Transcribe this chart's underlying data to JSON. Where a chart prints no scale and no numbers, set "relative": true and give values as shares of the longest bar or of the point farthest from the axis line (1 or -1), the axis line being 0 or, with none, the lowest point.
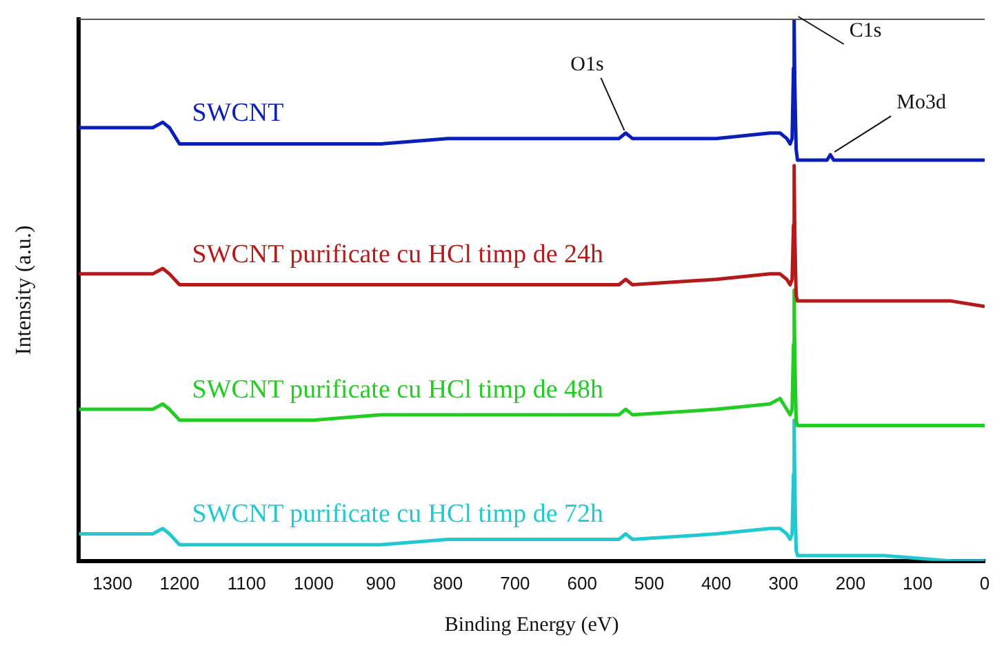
{
  "chart_data": {
    "type": "line",
    "relative": true,
    "xlabel": "Binding Energy (eV)",
    "ylabel": "Intensity (a.u.)",
    "xlim": [
      1350,
      0
    ],
    "xticks": [
      1300,
      1200,
      1100,
      1000,
      900,
      800,
      700,
      600,
      500,
      400,
      300,
      200,
      100,
      0
    ],
    "tick_labels": "x",
    "grid": false,
    "legend": false,
    "marker": "none",
    "line_style": "solid",
    "x": [
      1350,
      1300,
      1240,
      1225,
      1215,
      1200,
      1190,
      1100,
      1000,
      900,
      800,
      700,
      600,
      545,
      535,
      525,
      400,
      320,
      305,
      295,
      290,
      287,
      285,
      284,
      283,
      281,
      279,
      250,
      235,
      230,
      225,
      150,
      50,
      0
    ],
    "series": [
      {
        "name": "SWCNT",
        "color": "#0a1fb5",
        "values": [
          0.8,
          0.8,
          0.8,
          0.81,
          0.8,
          0.77,
          0.77,
          0.77,
          0.77,
          0.77,
          0.78,
          0.78,
          0.78,
          0.78,
          0.79,
          0.78,
          0.78,
          0.79,
          0.79,
          0.78,
          0.77,
          0.78,
          0.91,
          1,
          0.88,
          0.76,
          0.74,
          0.74,
          0.74,
          0.75,
          0.74,
          0.74,
          0.74,
          0.74
        ]
      },
      {
        "name": "SWCNT purificate cu HCl timp de 24h",
        "color": "#b51a1a",
        "values": [
          0.53,
          0.53,
          0.53,
          0.54,
          0.53,
          0.51,
          0.51,
          0.51,
          0.51,
          0.51,
          0.51,
          0.51,
          0.51,
          0.51,
          0.52,
          0.51,
          0.52,
          0.53,
          0.53,
          0.52,
          0.51,
          0.52,
          0.62,
          0.73,
          0.6,
          0.49,
          0.48,
          0.48,
          0.48,
          0.48,
          0.48,
          0.48,
          0.48,
          0.47
        ]
      },
      {
        "name": "SWCNT purificate cu HCl timp de 48h",
        "color": "#22cc22",
        "values": [
          0.28,
          0.28,
          0.28,
          0.29,
          0.28,
          0.26,
          0.26,
          0.26,
          0.26,
          0.27,
          0.27,
          0.27,
          0.27,
          0.27,
          0.28,
          0.27,
          0.28,
          0.29,
          0.3,
          0.28,
          0.27,
          0.28,
          0.4,
          0.5,
          0.38,
          0.26,
          0.25,
          0.25,
          0.25,
          0.25,
          0.25,
          0.25,
          0.25,
          0.25
        ]
      },
      {
        "name": "SWCNT purificate cu HCl timp de 72h",
        "color": "#22c8d0",
        "values": [
          0.05,
          0.05,
          0.05,
          0.06,
          0.05,
          0.03,
          0.03,
          0.03,
          0.03,
          0.03,
          0.04,
          0.04,
          0.04,
          0.04,
          0.05,
          0.04,
          0.05,
          0.06,
          0.06,
          0.05,
          0.04,
          0.05,
          0.16,
          0.26,
          0.14,
          0.02,
          0.01,
          0.01,
          0.01,
          0.01,
          0.01,
          0.01,
          0,
          0
        ]
      }
    ],
    "annotations": [
      {
        "text": "O1s",
        "x": 535,
        "y": 0.79
      },
      {
        "text": "C1s",
        "x": 284,
        "y": 1
      },
      {
        "text": "Mo3d",
        "x": 230,
        "y": 0.75
      }
    ]
  }
}
